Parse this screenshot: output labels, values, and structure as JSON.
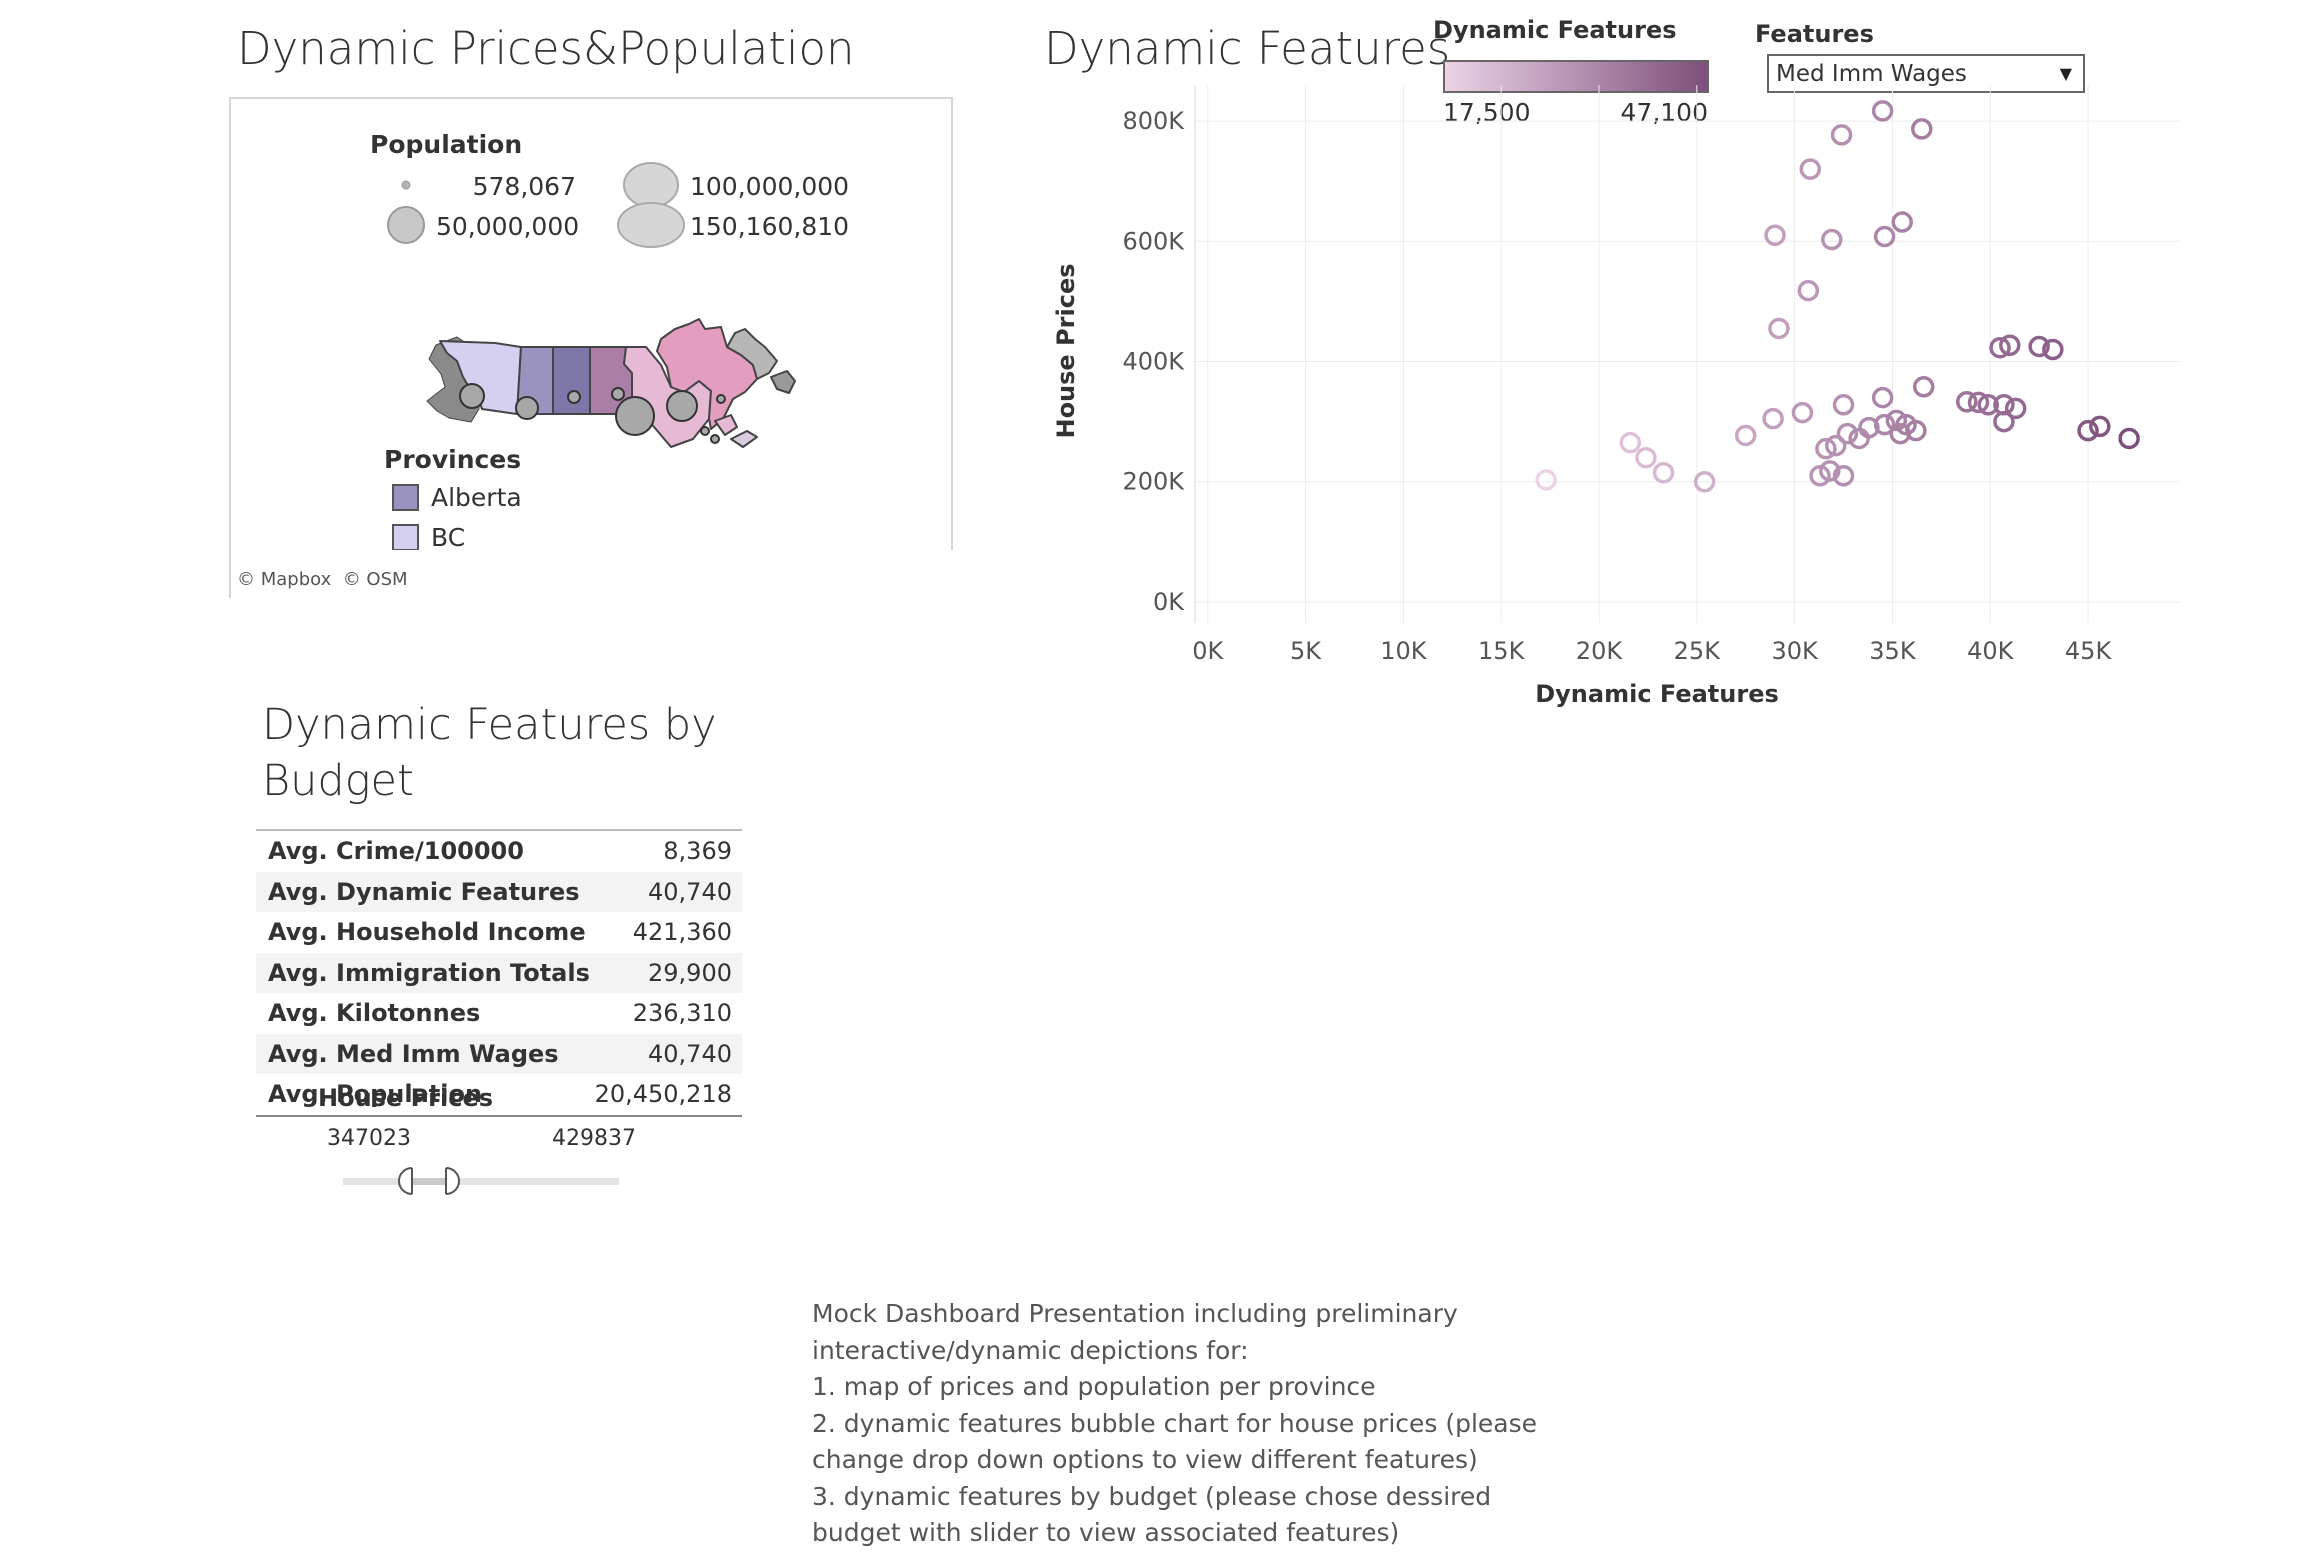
{
  "map": {
    "title": "Dynamic Prices&Population",
    "population_legend": {
      "title": "Population",
      "items": [
        "578,067",
        "50,000,000",
        "100,000,000",
        "150,160,810"
      ]
    },
    "provinces_legend": {
      "title": "Provinces",
      "items": [
        {
          "label": "Alberta",
          "color": "#9a92bf"
        },
        {
          "label": "BC",
          "color": "#d5cff0"
        }
      ]
    },
    "attribution": [
      "© Mapbox",
      "© OSM"
    ]
  },
  "scatter": {
    "title": "Dynamic Features",
    "color_legend": {
      "title": "Dynamic Features",
      "min_label": "17,500",
      "max_label": "47,100",
      "min_color": "#ecd3e6",
      "max_color": "#7d4f7c"
    },
    "features_control": {
      "label": "Features",
      "selected": "Med Imm Wages"
    }
  },
  "chart_data": {
    "type": "scatter",
    "title": "Dynamic Features",
    "xlabel": "Dynamic Features",
    "ylabel": "House Prices",
    "xlim": [
      -600,
      49700
    ],
    "ylim": [
      -35000,
      860000
    ],
    "xticks": [
      0,
      5000,
      10000,
      15000,
      20000,
      25000,
      30000,
      35000,
      40000,
      45000
    ],
    "xtick_labels": [
      "0K",
      "5K",
      "10K",
      "15K",
      "20K",
      "25K",
      "30K",
      "35K",
      "40K",
      "45K"
    ],
    "yticks": [
      0,
      200000,
      400000,
      600000,
      800000
    ],
    "ytick_labels": [
      "0K",
      "200K",
      "400K",
      "600K",
      "800K"
    ],
    "grid": true,
    "color_range": [
      17500,
      47100
    ],
    "points": [
      [
        17300,
        203000
      ],
      [
        21600,
        265000
      ],
      [
        22400,
        240000
      ],
      [
        23300,
        215000
      ],
      [
        25400,
        200000
      ],
      [
        27500,
        277000
      ],
      [
        28900,
        305000
      ],
      [
        30400,
        315000
      ],
      [
        31600,
        255000
      ],
      [
        32100,
        260000
      ],
      [
        32700,
        280000
      ],
      [
        31300,
        210000
      ],
      [
        31800,
        218000
      ],
      [
        32500,
        210000
      ],
      [
        33300,
        272000
      ],
      [
        33800,
        290000
      ],
      [
        34600,
        295000
      ],
      [
        35200,
        302000
      ],
      [
        35400,
        280000
      ],
      [
        35700,
        295000
      ],
      [
        36200,
        285000
      ],
      [
        32500,
        328000
      ],
      [
        34500,
        340000
      ],
      [
        36600,
        358000
      ],
      [
        29200,
        455000
      ],
      [
        30700,
        518000
      ],
      [
        29000,
        610000
      ],
      [
        31900,
        603000
      ],
      [
        34600,
        608000
      ],
      [
        35500,
        632000
      ],
      [
        30800,
        720000
      ],
      [
        32400,
        777000
      ],
      [
        34500,
        817000
      ],
      [
        36500,
        787000
      ],
      [
        38800,
        333000
      ],
      [
        39400,
        332000
      ],
      [
        39900,
        328000
      ],
      [
        40700,
        300000
      ],
      [
        40700,
        328000
      ],
      [
        41300,
        322000
      ],
      [
        40500,
        423000
      ],
      [
        41000,
        427000
      ],
      [
        42500,
        425000
      ],
      [
        43200,
        420000
      ],
      [
        45000,
        285000
      ],
      [
        45600,
        292000
      ],
      [
        47100,
        272000
      ]
    ]
  },
  "budget": {
    "title_lines": [
      "Dynamic Features by",
      "Budget"
    ],
    "rows": [
      {
        "label": "Avg. Crime/100000",
        "value": "8,369"
      },
      {
        "label": "Avg. Dynamic Features",
        "value": "40,740"
      },
      {
        "label": "Avg. Household Income",
        "value": "421,360"
      },
      {
        "label": "Avg. Immigration Totals",
        "value": "29,900"
      },
      {
        "label": "Avg. Kilotonnes",
        "value": "236,310"
      },
      {
        "label": "Avg. Med Imm Wages",
        "value": "40,740"
      },
      {
        "label": "Avg. Population",
        "value": "20,450,218"
      }
    ],
    "slider": {
      "title": "House Prices",
      "min_label": "347023",
      "max_label": "429837"
    }
  },
  "notes": {
    "lines": [
      "Mock Dashboard Presentation including preliminary",
      "interactive/dynamic  depictions for:",
      "1. map of prices and population per province",
      "2. dynamic features bubble chart for house prices (please",
      "change drop down options to view different features)",
      "3. dynamic features by budget (please chose dessired",
      "budget with slider to view associated features)"
    ]
  }
}
